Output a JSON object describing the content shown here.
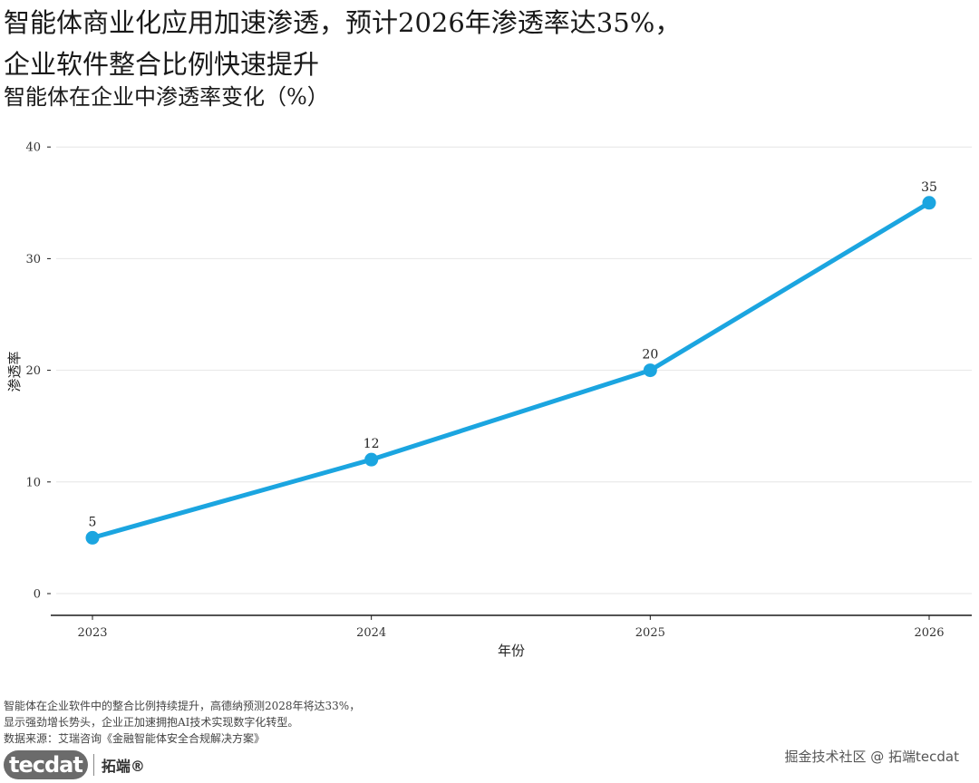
{
  "title_line1": "智能体商业化应用加速渗透，预计2026年渗透率达35%，",
  "title_line2": "企业软件整合比例快速提升",
  "subtitle": "智能体在企业中渗透率变化（%）",
  "notes": [
    "智能体在企业软件中的整合比例持续提升，高德纳预测2028年将达33%，",
    "显示强劲增长势头，企业正加速拥抱AI技术实现数字化转型。",
    "数据来源：艾瑞咨询《金融智能体安全合规解决方案》"
  ],
  "logo": {
    "badge": "tecdat",
    "name": "拓端®"
  },
  "watermark": "掘金技术社区 @ 拓端tecdat",
  "colors": {
    "line": "#1ba5e0",
    "grid": "#e6e6e6",
    "axis": "#1a1a1a"
  },
  "chart_data": {
    "type": "line",
    "categories": [
      "2023",
      "2024",
      "2025",
      "2026"
    ],
    "series": [
      {
        "values": [
          5,
          12,
          20,
          35
        ]
      }
    ],
    "data_labels": [
      "5",
      "12",
      "20",
      "35"
    ],
    "xlabel": "年份",
    "ylabel": "渗透率",
    "ylim": [
      -2,
      40
    ],
    "yticks": [
      0,
      10,
      20,
      30,
      40
    ],
    "grid": true,
    "legend": "none"
  }
}
